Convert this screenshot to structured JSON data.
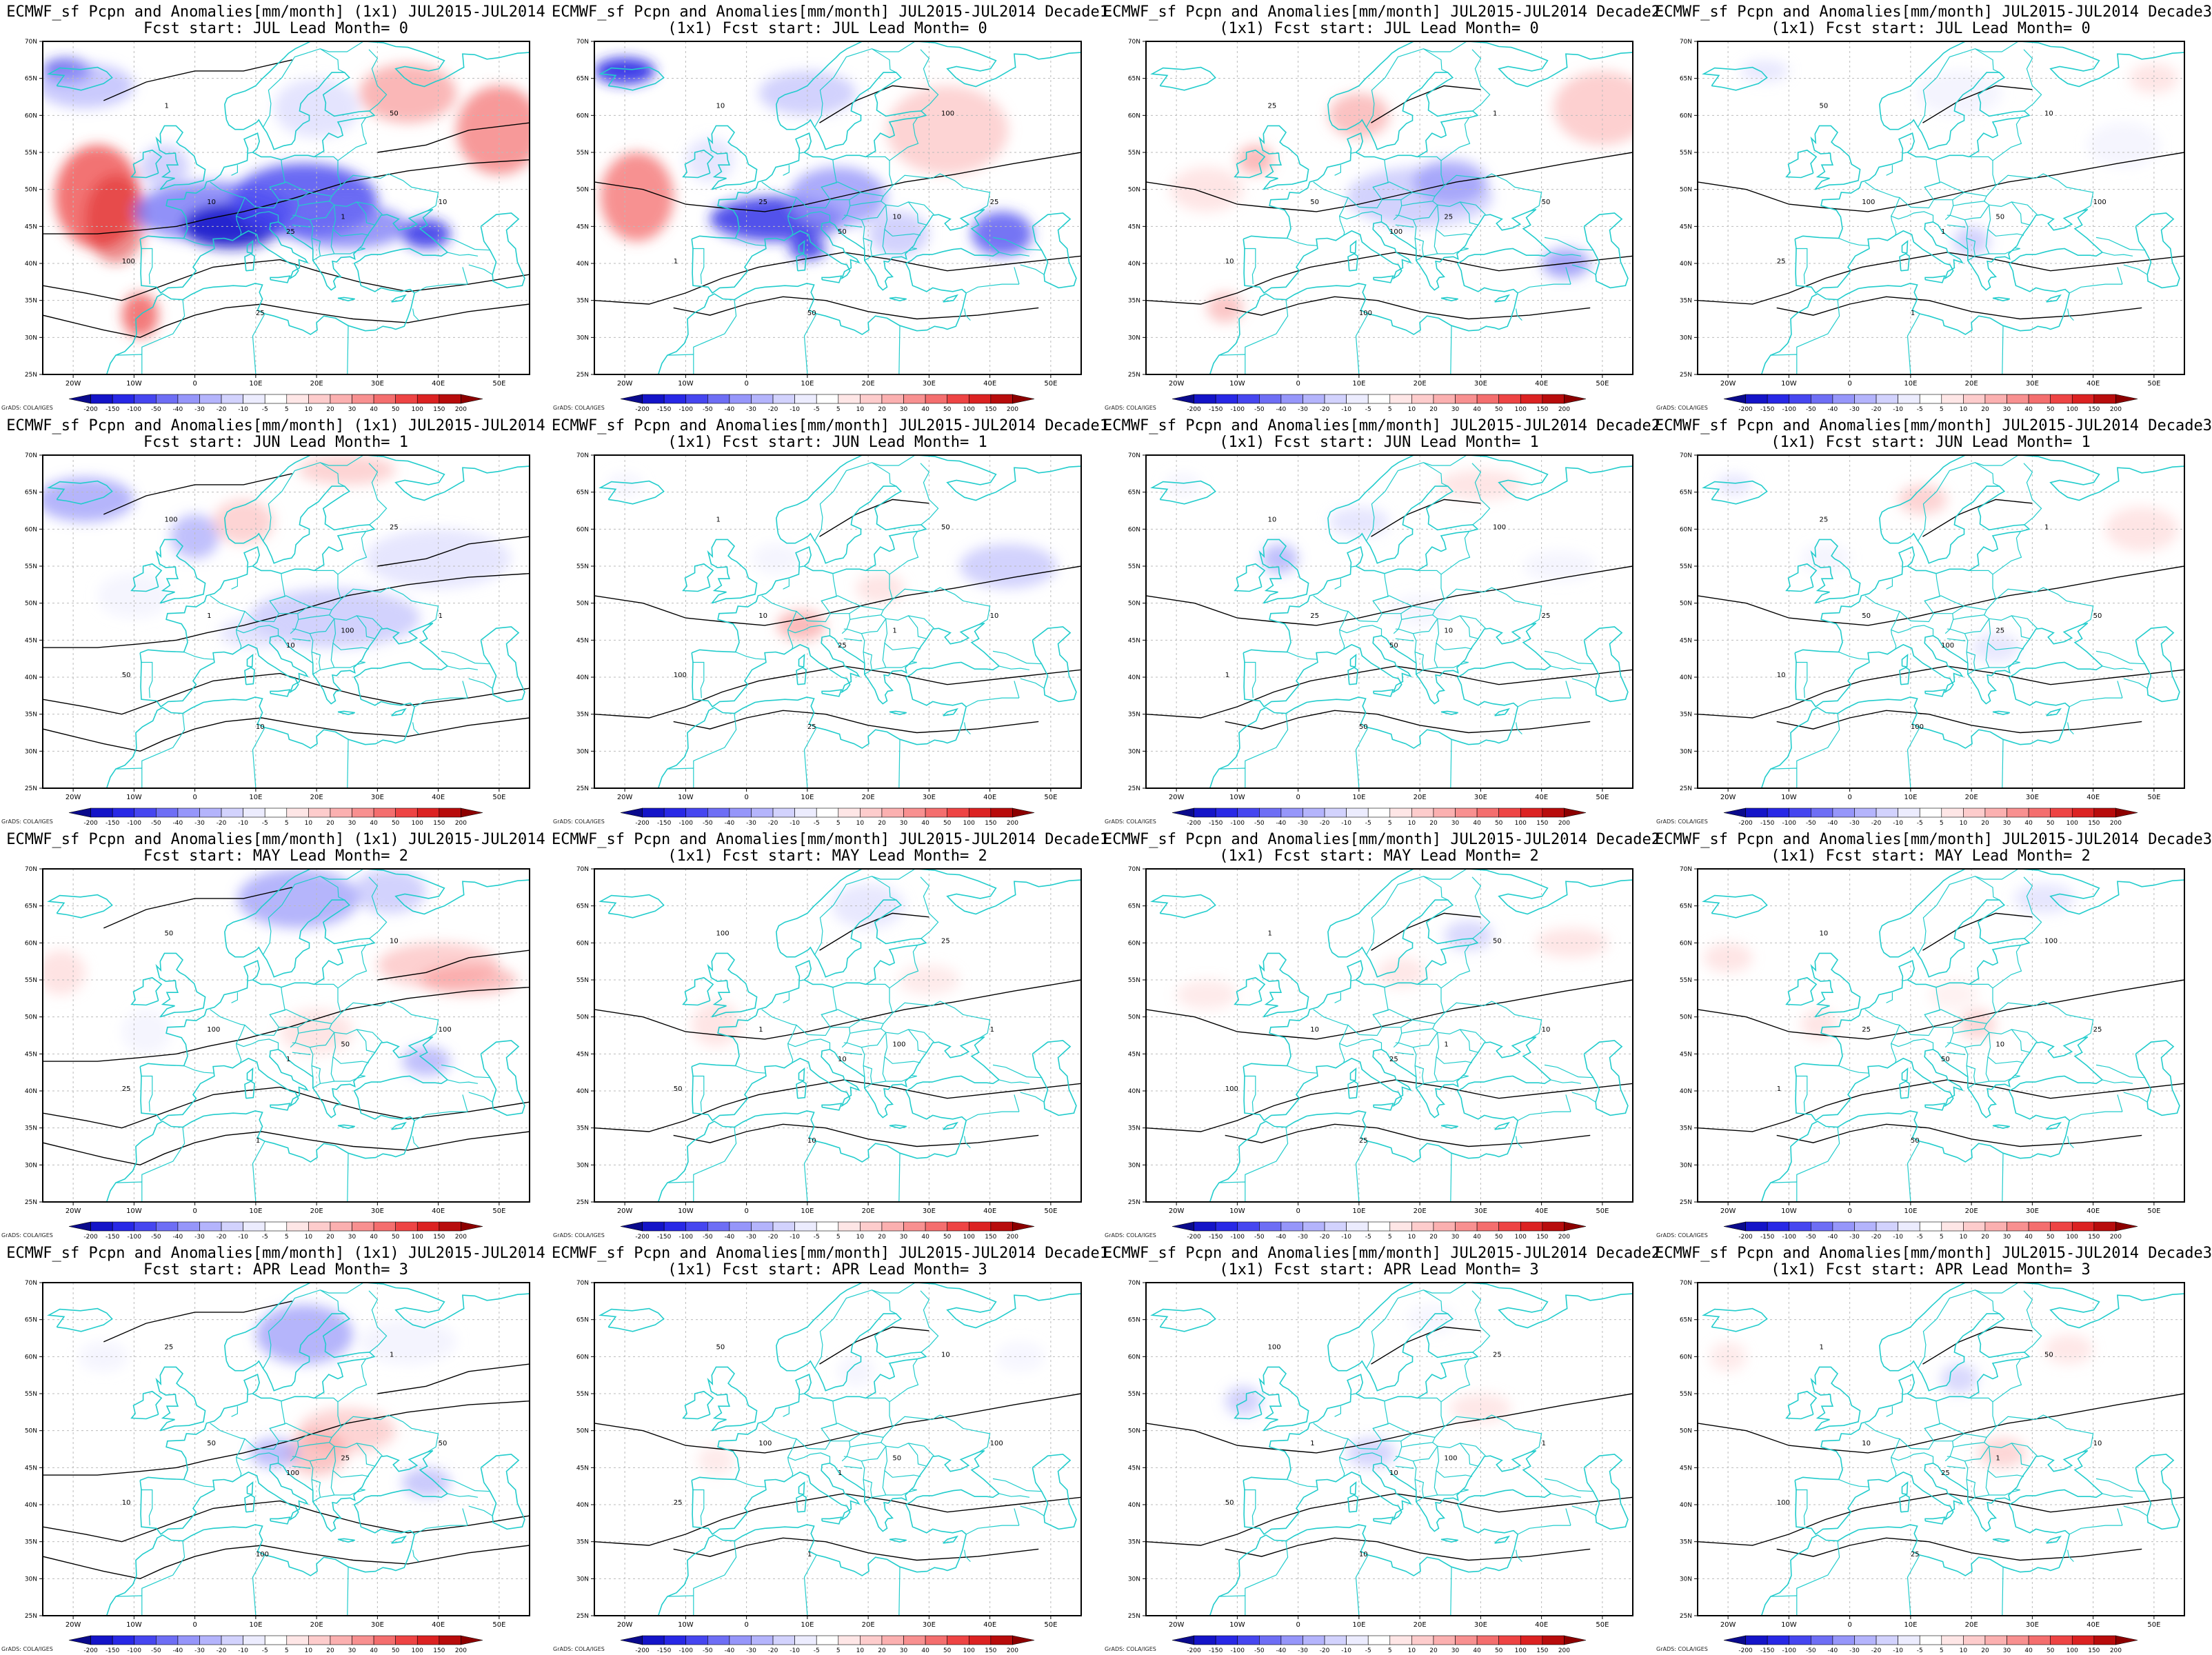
{
  "panels": [
    {
      "title1": "ECMWF_sf Pcpn and Anomalies[mm/month] (1x1) JUL2015-JUL2014",
      "title2": "Fcst start: JUL  Lead Month= 0",
      "lead": 0,
      "period": "month"
    },
    {
      "title1": "ECMWF_sf Pcpn and Anomalies[mm/month] JUL2015-JUL2014 Decade1",
      "title2": "(1x1) Fcst start: JUL  Lead Month= 0",
      "lead": 0,
      "period": "decade1"
    },
    {
      "title1": "ECMWF_sf Pcpn and Anomalies[mm/month] JUL2015-JUL2014 Decade2",
      "title2": "(1x1) Fcst start: JUL  Lead Month= 0",
      "lead": 0,
      "period": "decade2"
    },
    {
      "title1": "ECMWF_sf Pcpn and Anomalies[mm/month] JUL2015-JUL2014 Decade3",
      "title2": "(1x1) Fcst start: JUL  Lead Month= 0",
      "lead": 0,
      "period": "decade3"
    },
    {
      "title1": "ECMWF_sf Pcpn and Anomalies[mm/month] (1x1) JUL2015-JUL2014",
      "title2": "Fcst start: JUN  Lead Month= 1",
      "lead": 1,
      "period": "month"
    },
    {
      "title1": "ECMWF_sf Pcpn and Anomalies[mm/month] JUL2015-JUL2014 Decade1",
      "title2": "(1x1) Fcst start: JUN  Lead Month= 1",
      "lead": 1,
      "period": "decade1"
    },
    {
      "title1": "ECMWF_sf Pcpn and Anomalies[mm/month] JUL2015-JUL2014 Decade2",
      "title2": "(1x1) Fcst start: JUN  Lead Month= 1",
      "lead": 1,
      "period": "decade2"
    },
    {
      "title1": "ECMWF_sf Pcpn and Anomalies[mm/month] JUL2015-JUL2014 Decade3",
      "title2": "(1x1) Fcst start: JUN  Lead Month= 1",
      "lead": 1,
      "period": "decade3"
    },
    {
      "title1": "ECMWF_sf Pcpn and Anomalies[mm/month] (1x1) JUL2015-JUL2014",
      "title2": "Fcst start: MAY  Lead Month= 2",
      "lead": 2,
      "period": "month"
    },
    {
      "title1": "ECMWF_sf Pcpn and Anomalies[mm/month] JUL2015-JUL2014 Decade1",
      "title2": "(1x1) Fcst start: MAY  Lead Month= 2",
      "lead": 2,
      "period": "decade1"
    },
    {
      "title1": "ECMWF_sf Pcpn and Anomalies[mm/month] JUL2015-JUL2014 Decade2",
      "title2": "(1x1) Fcst start: MAY  Lead Month= 2",
      "lead": 2,
      "period": "decade2"
    },
    {
      "title1": "ECMWF_sf Pcpn and Anomalies[mm/month] JUL2015-JUL2014 Decade3",
      "title2": "(1x1) Fcst start: MAY  Lead Month= 2",
      "lead": 2,
      "period": "decade3"
    },
    {
      "title1": "ECMWF_sf Pcpn and Anomalies[mm/month] (1x1) JUL2015-JUL2014",
      "title2": "Fcst start: APR  Lead Month= 3",
      "lead": 3,
      "period": "month"
    },
    {
      "title1": "ECMWF_sf Pcpn and Anomalies[mm/month] JUL2015-JUL2014 Decade1",
      "title2": "(1x1) Fcst start: APR  Lead Month= 3",
      "lead": 3,
      "period": "decade1"
    },
    {
      "title1": "ECMWF_sf Pcpn and Anomalies[mm/month] JUL2015-JUL2014 Decade2",
      "title2": "(1x1) Fcst start: APR  Lead Month= 3",
      "lead": 3,
      "period": "decade2"
    },
    {
      "title1": "ECMWF_sf Pcpn and Anomalies[mm/month] JUL2015-JUL2014 Decade3",
      "title2": "(1x1) Fcst start: APR  Lead Month= 3",
      "lead": 3,
      "period": "decade3"
    }
  ],
  "map": {
    "lon_range": [
      -25,
      55
    ],
    "lat_range": [
      25,
      70
    ],
    "lon_ticks": [
      -20,
      -10,
      0,
      10,
      20,
      30,
      40,
      50
    ],
    "lon_tick_labels": [
      "20W",
      "10W",
      "0",
      "10E",
      "20E",
      "30E",
      "40E",
      "50E"
    ],
    "lat_ticks": [
      25,
      30,
      35,
      40,
      45,
      50,
      55,
      60,
      65,
      70
    ],
    "lat_tick_labels": [
      "25N",
      "30N",
      "35N",
      "40N",
      "45N",
      "50N",
      "55N",
      "60N",
      "65N",
      "70N"
    ],
    "coast_color": "#22cccc",
    "contour_color": "#000000",
    "grid_color": "#bbbbbb",
    "contour_label_values": [
      "1",
      "10",
      "25",
      "50",
      "100"
    ]
  },
  "colorbar": {
    "levels": [
      "-200",
      "-150",
      "-100",
      "-50",
      "-40",
      "-30",
      "-20",
      "-10",
      "-5",
      "5",
      "10",
      "20",
      "30",
      "40",
      "50",
      "100",
      "150",
      "200"
    ],
    "colors": [
      "#0a0a8c",
      "#1414c8",
      "#2828e6",
      "#4646f0",
      "#6e6ef5",
      "#9696fa",
      "#b4b4fc",
      "#d2d2fd",
      "#ececfe",
      "#ffffff",
      "#fee6e6",
      "#fdcccc",
      "#fbb0b0",
      "#f89090",
      "#f46e6e",
      "#ee4444",
      "#dc2222",
      "#b80c0c",
      "#8c0000"
    ]
  },
  "credit": "GrADS: COLA/IGES"
}
